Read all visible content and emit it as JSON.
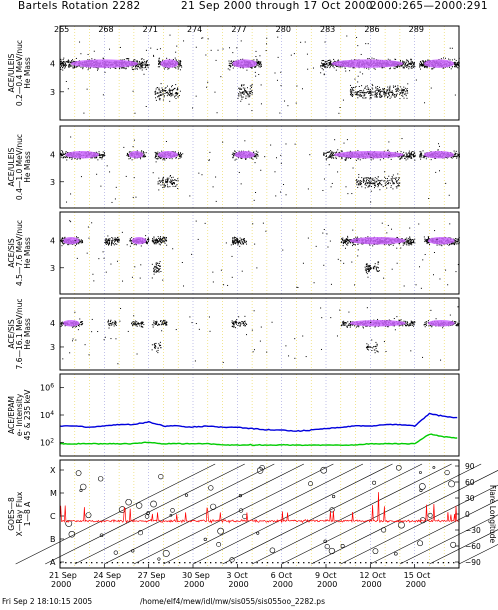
{
  "header": {
    "title": "Bartels Rotation 2282",
    "date_range": "21 Sep 2000 through 17 Oct 2000",
    "doy_range": "2000:265—2000:291"
  },
  "footer": {
    "timestamp": "Fri Sep  2 18:10:15 2005",
    "path": "/home/elf4/mew/idl/mw/sis055/sis055oo_2282.ps"
  },
  "chart_data": [
    {
      "type": "scatter",
      "panel": "ACE/ULEIS He mass",
      "ylabel": "ACE/ULEIS\n0.2—0.4 MeV/nuc\nHe Mass",
      "yticks": [
        "4",
        "3"
      ],
      "x_doy_range": [
        265,
        292
      ],
      "He4_activity_periods_doy": [
        [
          265,
          271
        ],
        [
          271.6,
          273.2
        ],
        [
          276.4,
          278.6
        ],
        [
          282.6,
          289
        ],
        [
          289.3,
          292
        ]
      ],
      "He3_enhancements_doy": [
        [
          271.4,
          273
        ],
        [
          277,
          278
        ],
        [
          284.6,
          288.5
        ]
      ],
      "colors": {
        "points": "#000000",
        "high_density": "#cc66ff"
      }
    },
    {
      "type": "scatter",
      "panel": "ACE/ULEIS He mass",
      "ylabel": "ACE/ULEIS\n0.4—1.0 MeV/nuc\nHe Mass",
      "yticks": [
        "4",
        "3"
      ],
      "x_doy_range": [
        265,
        292
      ],
      "He4_activity_periods_doy": [
        [
          265,
          268
        ],
        [
          269.5,
          270.8
        ],
        [
          271.4,
          273.2
        ],
        [
          276.6,
          278.4
        ],
        [
          282.8,
          289
        ],
        [
          289.3,
          292
        ]
      ],
      "He3_enhancements_doy": [
        [
          271.6,
          273
        ],
        [
          285,
          288
        ]
      ]
    },
    {
      "type": "scatter",
      "panel": "ACE/SIS He mass",
      "ylabel": "ACE/SIS\n4.5—7.6 MeV/nuc\nHe Mass",
      "yticks": [
        "4",
        "3"
      ],
      "x_doy_range": [
        265,
        292
      ],
      "He4_activity_periods_doy": [
        [
          265,
          266.5
        ],
        [
          268,
          269
        ],
        [
          269.7,
          271
        ],
        [
          271.2,
          272.2
        ],
        [
          276.6,
          277.6
        ],
        [
          284,
          289
        ],
        [
          289.6,
          292
        ]
      ],
      "He3_enhancements_doy": [
        [
          271.2,
          271.8
        ],
        [
          285.6,
          286.6
        ]
      ]
    },
    {
      "type": "scatter",
      "panel": "ACE/SIS He mass",
      "ylabel": "ACE/SIS\n7.6—16.1 MeV/nuc\nHe Mass",
      "yticks": [
        "4",
        "3"
      ],
      "x_doy_range": [
        265,
        292
      ],
      "He4_activity_periods_doy": [
        [
          265,
          266.5
        ],
        [
          268.2,
          268.8
        ],
        [
          269.8,
          270.6
        ],
        [
          271.2,
          272.2
        ],
        [
          276.6,
          277.6
        ],
        [
          284,
          289
        ],
        [
          289.6,
          292
        ]
      ],
      "He3_enhancements_doy": [
        [
          271.2,
          271.8
        ],
        [
          285.7,
          286.5
        ]
      ]
    },
    {
      "type": "line",
      "panel": "ACE/EPAM",
      "ylabel": "ACE/EPAM\ne- Intensity\n45 & 235 keV",
      "yscale": "log",
      "yticks": [
        "10^6",
        "10^4",
        "10^2"
      ],
      "ylim_log10": [
        1,
        7
      ],
      "x_doy": [
        265,
        266,
        267,
        268,
        269,
        270,
        271,
        272,
        273,
        274,
        275,
        276,
        277,
        278,
        279,
        280,
        281,
        282,
        283,
        284,
        285,
        286,
        287,
        288,
        289,
        290,
        291,
        292
      ],
      "series": [
        {
          "color": "#0000dd",
          "values_log10": [
            3.2,
            3.2,
            3.1,
            3.2,
            3.3,
            3.3,
            3.5,
            3.2,
            3.2,
            3.1,
            3.2,
            3.1,
            3.1,
            3.0,
            2.9,
            2.9,
            2.8,
            2.9,
            3.0,
            3.1,
            3.2,
            3.2,
            3.3,
            3.3,
            3.2,
            4.1,
            3.9,
            3.8
          ]
        },
        {
          "color": "#00cc00",
          "values_log10": [
            1.9,
            1.9,
            1.9,
            1.9,
            1.9,
            1.9,
            2.0,
            1.9,
            1.9,
            1.9,
            1.9,
            1.8,
            1.8,
            1.8,
            1.8,
            1.8,
            1.8,
            1.8,
            1.8,
            1.8,
            1.8,
            1.9,
            1.9,
            1.9,
            1.9,
            2.6,
            2.4,
            2.3
          ]
        }
      ]
    },
    {
      "type": "line",
      "panel": "GOES-8 X-Ray Flux",
      "ylabel": "GOES—8\nX—Ray Flux\n1—8 A",
      "yticks_left": [
        "X",
        "M",
        "C",
        "B",
        "A"
      ],
      "ylabel_right": "Flare Longitude",
      "yticks_right": [
        "90",
        "60",
        "30",
        "0",
        "−30",
        "−60",
        "−90"
      ],
      "series": [
        {
          "color": "#ff0000",
          "description": "1-8 A flux, mostly C-class background with flare spikes"
        }
      ],
      "flare_longitude_tracks": "diagonal black lines and circles",
      "xticks": [
        {
          "day": "21 Sep",
          "year": "2000"
        },
        {
          "day": "24 Sep",
          "year": "2000"
        },
        {
          "day": "27 Sep",
          "year": "2000"
        },
        {
          "day": "30 Sep",
          "year": "2000"
        },
        {
          "day": "3 Oct",
          "year": "2000"
        },
        {
          "day": "6 Oct",
          "year": "2000"
        },
        {
          "day": "9 Oct",
          "year": "2000"
        },
        {
          "day": "12 Oct",
          "year": "2000"
        },
        {
          "day": "15 Oct",
          "year": "2000"
        }
      ]
    }
  ],
  "top_axis": {
    "doy_ticks": [
      "265",
      "268",
      "271",
      "274",
      "277",
      "280",
      "283",
      "286",
      "289"
    ]
  },
  "colors": {
    "blue": "#0000dd",
    "green": "#00cc00",
    "red": "#ff0000",
    "purple": "#cc66ff",
    "grid_yellow": "#e8d44a"
  }
}
